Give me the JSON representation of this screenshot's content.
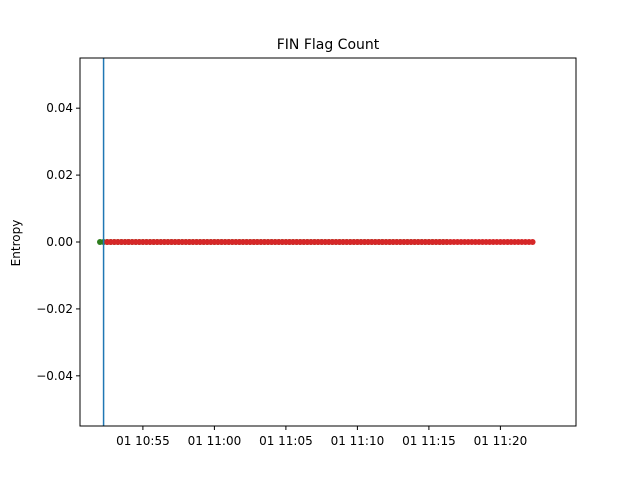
{
  "chart_data": {
    "type": "scatter",
    "title": "FIN Flag Count",
    "xlabel": "",
    "ylabel": "Entropy",
    "x_range": [
      "10:52:00",
      "11:22:00"
    ],
    "x_start": "10:52:00",
    "ylim": [
      -0.055,
      0.055
    ],
    "xtick_labels": [
      "01 10:55",
      "01 11:00",
      "01 11:05",
      "01 11:10",
      "01 11:15",
      "01 11:20"
    ],
    "xtick_values": [
      "10:55:00",
      "11:00:00",
      "11:05:00",
      "11:10:00",
      "11:15:00",
      "11:20:00"
    ],
    "ytick_labels": [
      "0.04",
      "0.02",
      "0.00",
      "−0.02",
      "−0.04"
    ],
    "ytick_values": [
      0.04,
      0.02,
      0.0,
      -0.02,
      -0.04
    ],
    "vertical_line_x": "10:52:15",
    "series": [
      {
        "color": "#2e7d1e",
        "x_from": "10:52:00",
        "x_to": "11:16:15",
        "step_seconds": 15,
        "y": 0.0
      },
      {
        "color": "#d62728",
        "x_from": "10:52:30",
        "x_to": "11:22:15",
        "step_seconds": 15,
        "y": 0.0
      }
    ],
    "grid": false,
    "colors": {
      "vline": "#1f77b4",
      "axes": "#000000"
    }
  }
}
